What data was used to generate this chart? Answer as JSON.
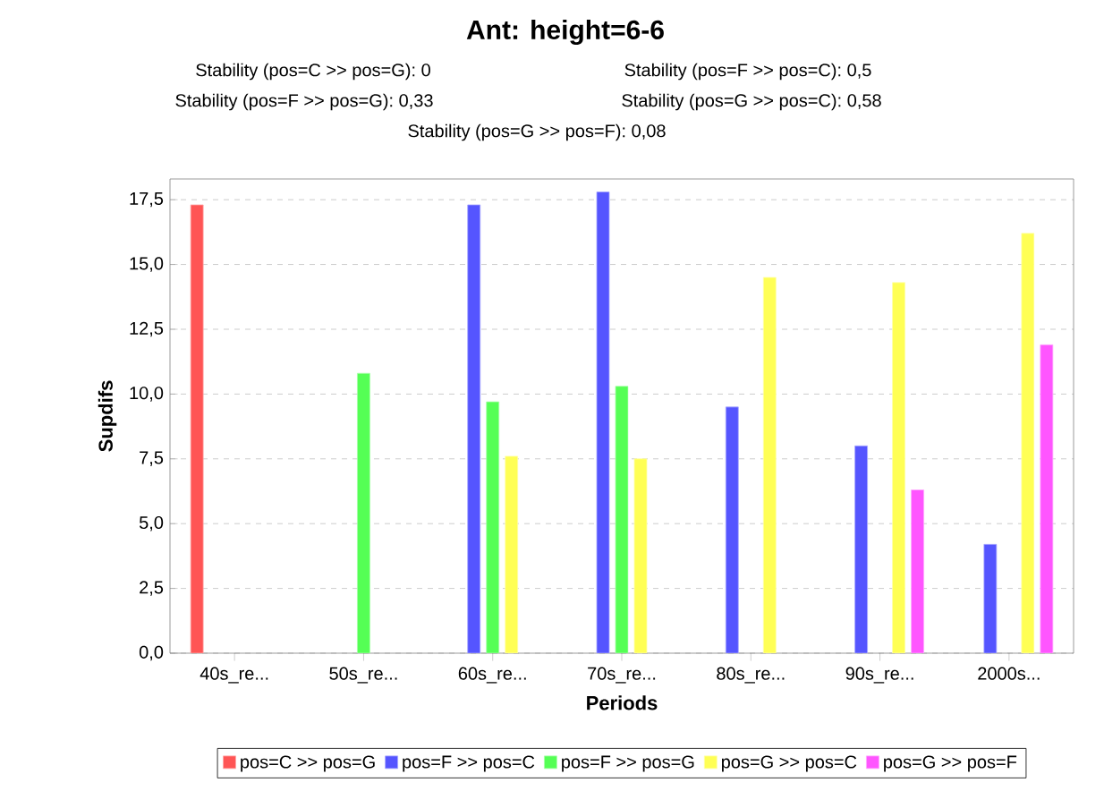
{
  "chart_data": {
    "type": "bar",
    "title": "Ant: height=6-6",
    "annotations": [
      "Stability (pos=C >> pos=G): 0",
      "Stability (pos=F >> pos=C): 0,5",
      "Stability (pos=F >> pos=G): 0,33",
      "Stability (pos=G >> pos=C): 0,58",
      "Stability (pos=G >> pos=F): 0,08"
    ],
    "xlabel": "Periods",
    "ylabel": "Supdifs",
    "categories": [
      "40s_re...",
      "50s_re...",
      "60s_re...",
      "70s_re...",
      "80s_re...",
      "90s_re...",
      "2000s..."
    ],
    "series": [
      {
        "name": "pos=C >> pos=G",
        "color": "#ff5555",
        "values": [
          17.3,
          null,
          null,
          null,
          null,
          null,
          null
        ]
      },
      {
        "name": "pos=F >> pos=C",
        "color": "#5555ff",
        "values": [
          null,
          null,
          17.3,
          17.8,
          9.5,
          8.0,
          4.2
        ]
      },
      {
        "name": "pos=F >> pos=G",
        "color": "#55ff55",
        "values": [
          null,
          10.8,
          9.7,
          10.3,
          null,
          null,
          null
        ]
      },
      {
        "name": "pos=G >> pos=C",
        "color": "#ffff55",
        "values": [
          null,
          null,
          7.6,
          7.5,
          14.5,
          14.3,
          16.2
        ]
      },
      {
        "name": "pos=G >> pos=F",
        "color": "#ff55ff",
        "values": [
          null,
          null,
          null,
          null,
          null,
          6.3,
          11.9
        ]
      }
    ],
    "ylim": [
      0,
      18.3
    ],
    "yticks": [
      {
        "value": 0,
        "label": "0,0"
      },
      {
        "value": 2.5,
        "label": "2,5"
      },
      {
        "value": 5,
        "label": "5,0"
      },
      {
        "value": 7.5,
        "label": "7,5"
      },
      {
        "value": 10,
        "label": "10,0"
      },
      {
        "value": 12.5,
        "label": "12,5"
      },
      {
        "value": 15,
        "label": "15,0"
      },
      {
        "value": 17.5,
        "label": "17,5"
      }
    ],
    "grid": "y",
    "legend": "bottom"
  }
}
